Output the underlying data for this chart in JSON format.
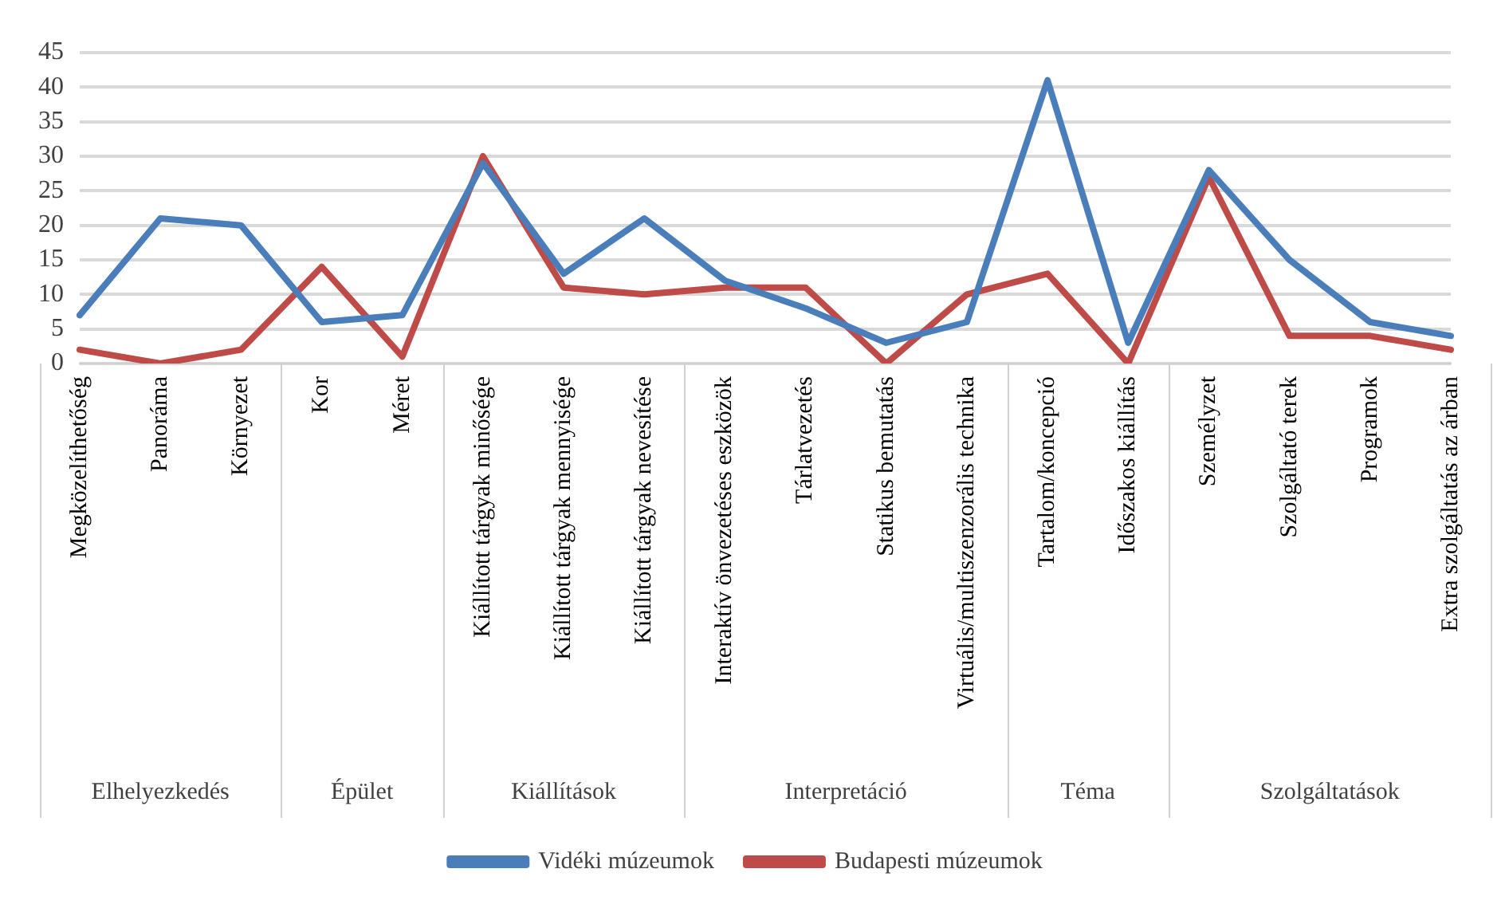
{
  "chart_data": {
    "type": "line",
    "categories": [
      "Megközelíthetőség",
      "Panoráma",
      "Környezet",
      "Kor",
      "Méret",
      "Kiállított tárgyak minősége",
      "Kiállított tárgyak mennyisége",
      "Kiállított tárgyak nevesítése",
      "Interaktív önvezetéses eszközök",
      "Tárlatvezetés",
      "Statikus bemutatás",
      "Virtuális/multiszenzorális technika",
      "Tartalom/koncepció",
      "Időszakos kiállítás",
      "Személyzet",
      "Szolgáltató terek",
      "Programok",
      "Extra szolgáltatás az árban"
    ],
    "series": [
      {
        "name": "Vidéki múzeumok",
        "color": "#4a7ebb",
        "values": [
          7,
          21,
          20,
          6,
          7,
          29,
          13,
          21,
          12,
          8,
          3,
          6,
          41,
          3,
          28,
          15,
          6,
          4
        ]
      },
      {
        "name": "Budapesti múzeumok",
        "color": "#be4b48",
        "values": [
          2,
          0,
          2,
          14,
          1,
          30,
          11,
          10,
          11,
          11,
          0,
          10,
          13,
          0,
          27,
          4,
          4,
          2
        ]
      }
    ],
    "annotations": [
      "Elhelyezkedés",
      "Épület",
      "Kiállítások",
      "Interpretáció",
      "Téma",
      "Szolgáltatások"
    ],
    "ylim": [
      0,
      45
    ],
    "yticks": [
      0,
      5,
      10,
      15,
      20,
      25,
      30,
      35,
      40,
      45
    ],
    "grid": "y",
    "legend": "bottom",
    "marker": "none",
    "line_style": "solid"
  }
}
